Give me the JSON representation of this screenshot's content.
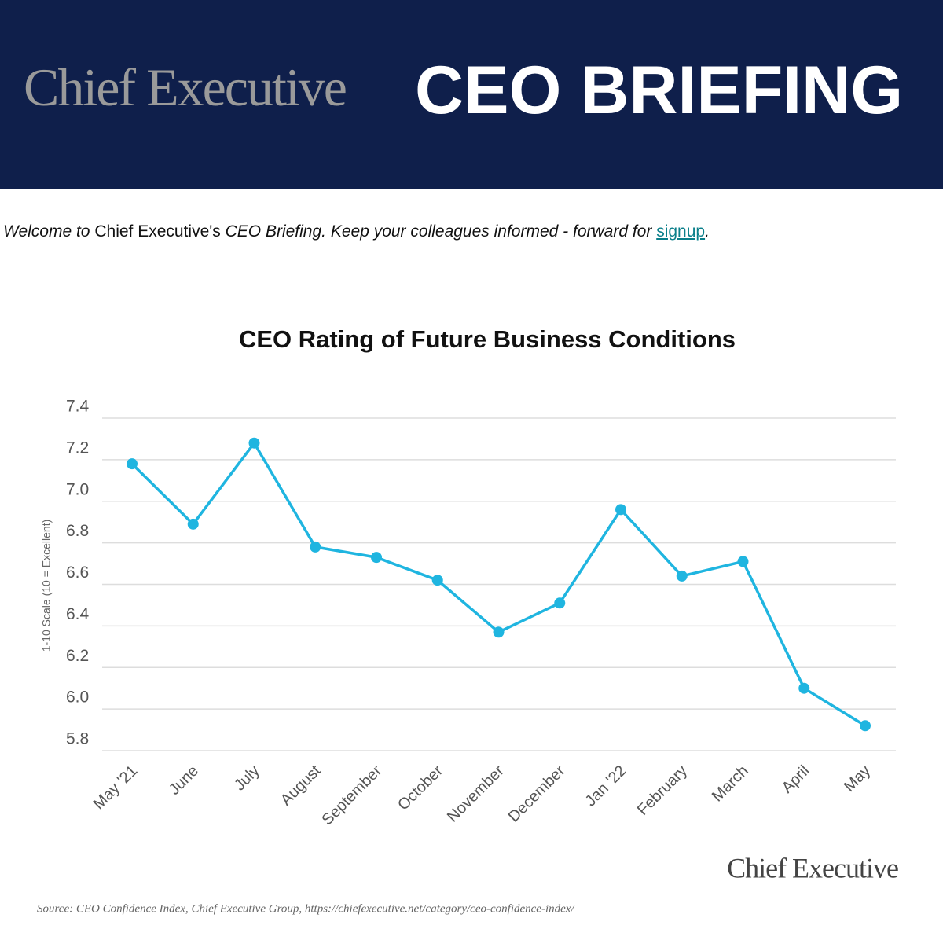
{
  "header": {
    "brand": "Chief Executive",
    "title": "CEO BRIEFING"
  },
  "intro": {
    "welcome": "Welcome to",
    "brand": "Chief Executive's",
    "text": "CEO Briefing. Keep your colleagues informed - forward for",
    "link": "signup",
    "end": "."
  },
  "chart_data": {
    "type": "line",
    "title": "CEO Rating of Future Business Conditions",
    "y_label": "1-10 Scale (10 = Excellent)",
    "categories": [
      "May '21",
      "June",
      "July",
      "August",
      "September",
      "October",
      "November",
      "December",
      "Jan '22",
      "February",
      "March",
      "April",
      "May"
    ],
    "series": [
      {
        "name": "CEO Rating",
        "color": "#1fb5e0",
        "values": [
          7.18,
          6.89,
          7.28,
          6.78,
          6.73,
          6.62,
          6.37,
          6.51,
          6.96,
          6.64,
          6.71,
          6.1,
          5.92
        ]
      }
    ],
    "ylim": [
      5.8,
      7.4
    ],
    "yticks": [
      5.8,
      {
        "value": 6,
        "label": "6.0"
      },
      6.2,
      6.4,
      6.6,
      6.8,
      {
        "value": 7,
        "label": "7.0"
      },
      7.2,
      7.4
    ],
    "grid": true,
    "logo": "Chief Executive",
    "source": "Source: CEO Confidence Index, Chief Executive Group, https://chiefexecutive.net/category/ceo-confidence-index/"
  }
}
